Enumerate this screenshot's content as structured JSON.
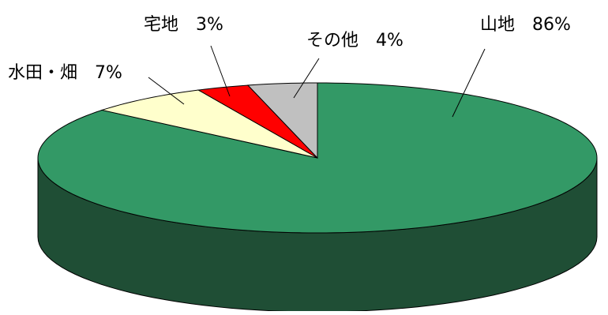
{
  "chart_data": {
    "type": "pie",
    "style": "3d",
    "start_angle": "top",
    "direction": "clockwise",
    "slices": [
      {
        "label": "山地",
        "value": 86,
        "display": "山地　86%",
        "color": "#339966",
        "side_color": "#1f4e35"
      },
      {
        "label": "水田・畑",
        "value": 7,
        "display": "水田・畑　7%",
        "color": "#ffffcc",
        "side_color": "#ccccaa"
      },
      {
        "label": "宅地",
        "value": 3,
        "display": "宅地　3%",
        "color": "#ff0000",
        "side_color": "#aa0000"
      },
      {
        "label": "その他",
        "value": 4,
        "display": "その他　4%",
        "color": "#c0c0c0",
        "side_color": "#808080"
      }
    ]
  }
}
